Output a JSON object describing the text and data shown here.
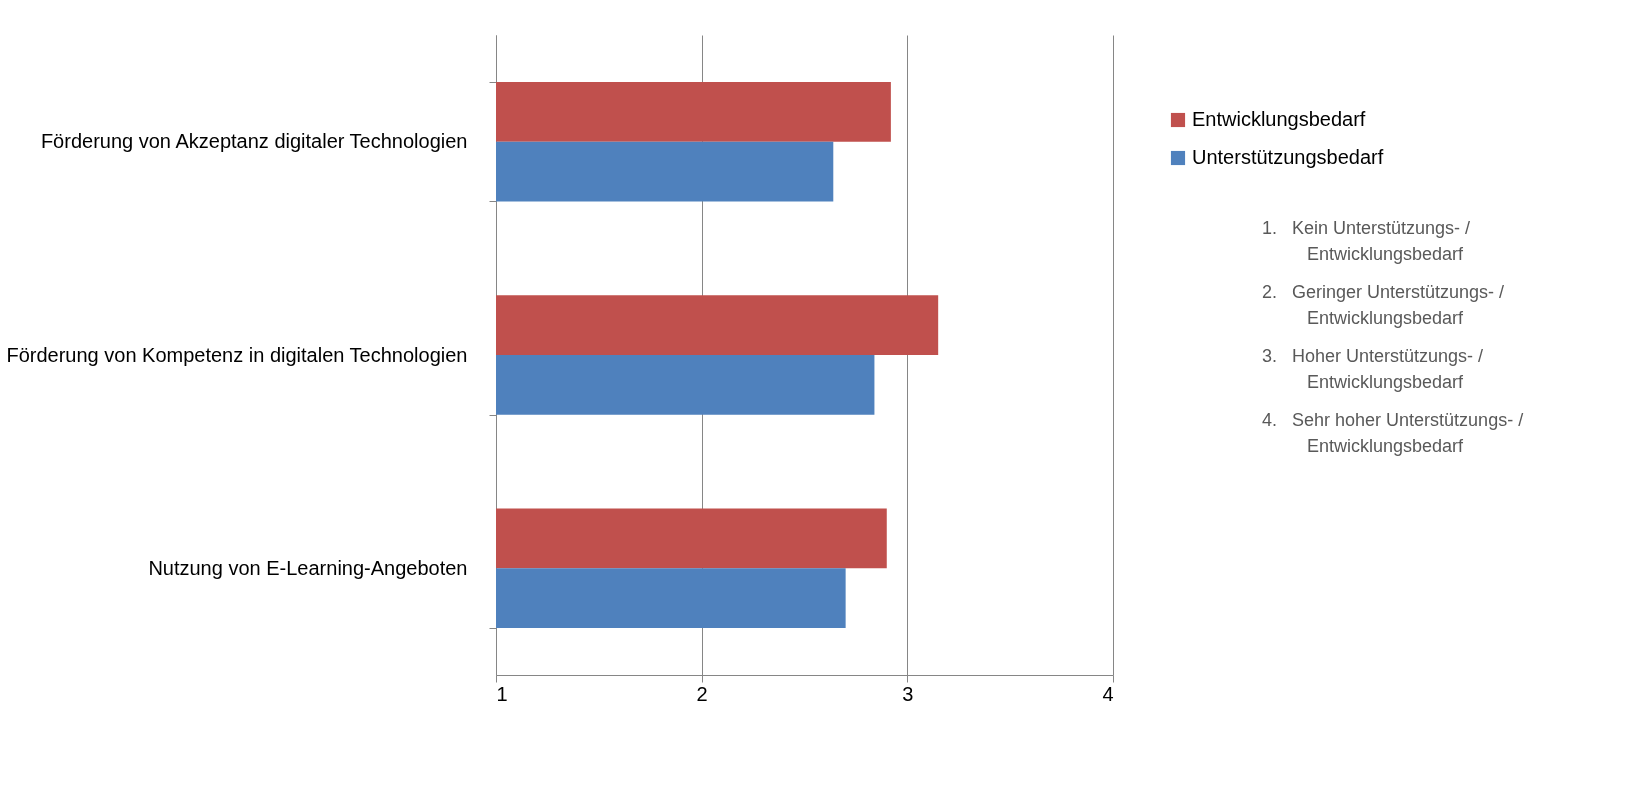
{
  "chart_data": {
    "type": "bar",
    "orientation": "horizontal",
    "categories": [
      "Förderung von Akzeptanz digitaler Technologien",
      "Förderung von Kompetenz in digitalen Technologien",
      "Nutzung von E-Learning-Angeboten"
    ],
    "series": [
      {
        "name": "Entwicklungsbedarf",
        "color": "#c0504d",
        "values": [
          2.92,
          3.15,
          2.9
        ]
      },
      {
        "name": "Unterstützungsbedarf",
        "color": "#4f81bd",
        "values": [
          2.64,
          2.84,
          2.7
        ]
      }
    ],
    "xlim": [
      1,
      4
    ],
    "xticks": [
      1,
      2,
      3,
      4
    ],
    "grid": "x",
    "legend": "right",
    "annotations": [
      "1.   Kein Unterstützungs- / Entwicklungsbedarf",
      "2.   Geringer Unterstützungs- / Entwicklungsbedarf",
      "3.   Hoher Unterstützungs- / Entwicklungsbedarf",
      "4.   Sehr hoher Unterstützungs- / Entwicklungsbedarf"
    ]
  }
}
